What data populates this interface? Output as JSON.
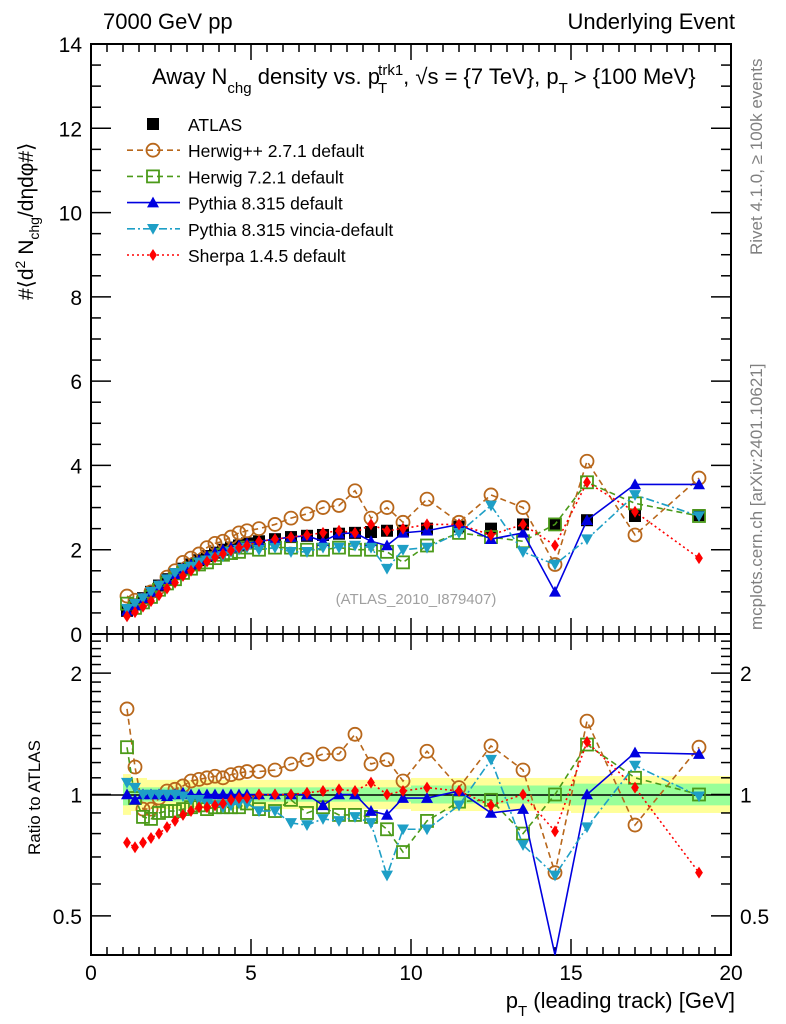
{
  "header": {
    "left": "7000 GeV pp",
    "right": "Underlying Event"
  },
  "side_labels": {
    "rivet": "Rivet 4.1.0, ≥ 100k events",
    "mcplots": "mcplots.cern.ch [arXiv:2401.10621]"
  },
  "watermark": "(ATLAS_2010_I879407)",
  "chart_data": [
    {
      "type": "line",
      "panel": "main",
      "title": "Away N_chg density vs. p_T^trk1, √s = {7 TeV}, p_T > {100 MeV}",
      "title_parts": {
        "a": "Away N",
        "a_sub": "chg",
        "b": " density vs. p",
        "b_sub": "T",
        "b_sup": "trk1",
        "c": ", √s = {7 TeV}, p",
        "c_sub": "T",
        "d": " > {100 MeV}"
      },
      "ylabel": "#⟨d² N_chg/dηdφ#⟩",
      "ylabel_parts": {
        "a": "#⟨d",
        "sup": "2",
        "b": " N",
        "sub": "chg",
        "c": "/dηdφ#⟩"
      },
      "xlabel": "p_T (leading track) [GeV]",
      "xlim": [
        0,
        20
      ],
      "ylim": [
        0,
        14
      ],
      "yticks": [
        0,
        2,
        4,
        6,
        8,
        10,
        12,
        14
      ],
      "xticks": [
        0,
        5,
        10,
        15,
        20
      ],
      "legend_position": "top-left",
      "x": [
        1.125,
        1.375,
        1.625,
        1.875,
        2.125,
        2.375,
        2.625,
        2.875,
        3.125,
        3.375,
        3.625,
        3.875,
        4.125,
        4.375,
        4.625,
        4.875,
        5.25,
        5.75,
        6.25,
        6.75,
        7.25,
        7.75,
        8.25,
        8.75,
        9.25,
        9.75,
        10.5,
        11.5,
        12.5,
        13.5,
        14.5,
        15.5,
        17,
        19
      ],
      "series": [
        {
          "name": "ATLAS",
          "color": "#000000",
          "marker": "square-filled",
          "line": "none",
          "values": [
            0.55,
            0.7,
            0.85,
            1.0,
            1.15,
            1.3,
            1.42,
            1.55,
            1.65,
            1.75,
            1.85,
            1.93,
            2.0,
            2.05,
            2.1,
            2.15,
            2.2,
            2.25,
            2.3,
            2.33,
            2.35,
            2.38,
            2.4,
            2.42,
            2.45,
            2.45,
            2.5,
            2.55,
            2.5,
            2.6,
            2.6,
            2.7,
            2.8,
            2.82
          ]
        },
        {
          "name": "Herwig++ 2.7.1 default",
          "color": "#b8671b",
          "marker": "circle-open",
          "line": "dashed",
          "values": [
            0.9,
            0.8,
            0.8,
            1.0,
            1.1,
            1.35,
            1.5,
            1.7,
            1.8,
            1.9,
            2.05,
            2.15,
            2.2,
            2.3,
            2.4,
            2.45,
            2.5,
            2.6,
            2.75,
            2.85,
            3.0,
            3.05,
            3.4,
            2.75,
            3.0,
            2.65,
            3.2,
            2.65,
            3.3,
            3.0,
            1.65,
            4.1,
            2.35,
            3.7
          ]
        },
        {
          "name": "Herwig 7.2.1 default",
          "color": "#4b9a19",
          "marker": "square-open",
          "line": "dashed",
          "values": [
            0.72,
            0.62,
            0.75,
            0.88,
            1.05,
            1.2,
            1.3,
            1.45,
            1.55,
            1.65,
            1.7,
            1.8,
            1.88,
            1.92,
            1.95,
            2.05,
            2.0,
            2.05,
            2.05,
            2.0,
            2.0,
            2.05,
            2.0,
            2.0,
            1.95,
            1.7,
            2.1,
            2.4,
            2.3,
            2.2,
            2.6,
            3.6,
            3.1,
            2.8
          ]
        },
        {
          "name": "Pythia 8.315 default",
          "color": "#0000e0",
          "marker": "triangle-up-filled",
          "line": "solid",
          "values": [
            0.55,
            0.68,
            0.85,
            1.0,
            1.15,
            1.3,
            1.42,
            1.55,
            1.65,
            1.75,
            1.85,
            1.93,
            2.0,
            2.05,
            2.1,
            2.15,
            2.2,
            2.25,
            2.3,
            2.33,
            2.2,
            2.38,
            2.4,
            2.2,
            2.1,
            2.4,
            2.45,
            2.6,
            2.25,
            2.4,
            1.0,
            2.7,
            3.55,
            3.55
          ]
        },
        {
          "name": "Pythia 8.315 vincia-default",
          "color": "#1e9fc6",
          "marker": "triangle-down-filled",
          "line": "dashdot",
          "values": [
            0.6,
            0.72,
            0.85,
            1.0,
            1.15,
            1.3,
            1.45,
            1.55,
            1.6,
            1.7,
            1.75,
            1.82,
            1.85,
            1.95,
            2.0,
            2.05,
            2.0,
            2.05,
            1.95,
            1.95,
            2.05,
            2.05,
            2.1,
            2.05,
            1.55,
            2.0,
            2.05,
            2.4,
            3.05,
            1.95,
            1.65,
            2.25,
            3.3,
            2.8
          ]
        },
        {
          "name": "Sherpa 1.4.5 default",
          "color": "#ff0000",
          "marker": "diamond-filled",
          "line": "dotted",
          "values": [
            0.42,
            0.52,
            0.65,
            0.78,
            0.92,
            1.08,
            1.22,
            1.38,
            1.5,
            1.62,
            1.72,
            1.82,
            1.9,
            1.98,
            2.05,
            2.1,
            2.2,
            2.25,
            2.3,
            2.35,
            2.4,
            2.45,
            2.4,
            2.6,
            2.45,
            2.5,
            2.6,
            2.6,
            2.35,
            2.6,
            2.1,
            3.6,
            2.9,
            1.8
          ]
        }
      ]
    },
    {
      "type": "line",
      "panel": "ratio",
      "ylabel": "Ratio to ATLAS",
      "xlabel": "p_T (leading track) [GeV]",
      "xlim": [
        0,
        20
      ],
      "ylim": [
        0.4,
        2.5
      ],
      "yscale": "log",
      "ytick_labels": [
        "0.5",
        "1",
        "2"
      ],
      "yticks": [
        0.5,
        1,
        2
      ],
      "xticks": [
        0,
        5,
        10,
        15,
        20
      ],
      "band_inner": [
        0.94,
        0.95,
        0.96,
        0.96,
        0.96,
        0.96,
        0.96,
        0.96,
        0.96,
        0.96,
        0.96,
        0.96,
        0.96,
        0.96,
        0.96,
        0.96,
        0.96,
        0.96,
        0.96,
        0.96,
        0.96,
        0.96,
        0.96,
        0.96,
        0.96,
        0.96,
        0.95,
        0.95,
        0.95,
        0.95,
        0.95,
        0.94,
        0.94,
        0.94
      ],
      "band_outer": [
        0.89,
        0.91,
        0.91,
        0.92,
        0.92,
        0.92,
        0.92,
        0.92,
        0.92,
        0.92,
        0.92,
        0.92,
        0.92,
        0.92,
        0.92,
        0.92,
        0.92,
        0.92,
        0.92,
        0.92,
        0.92,
        0.92,
        0.92,
        0.92,
        0.92,
        0.92,
        0.91,
        0.91,
        0.91,
        0.91,
        0.91,
        0.9,
        0.9,
        0.9
      ],
      "series": [
        {
          "name": "Herwig++ 2.7.1 default",
          "values": [
            1.63,
            1.17,
            0.92,
            0.92,
            0.98,
            1.02,
            1.03,
            1.05,
            1.08,
            1.09,
            1.1,
            1.11,
            1.1,
            1.12,
            1.13,
            1.14,
            1.14,
            1.15,
            1.19,
            1.22,
            1.26,
            1.26,
            1.41,
            1.19,
            1.22,
            1.08,
            1.28,
            1.04,
            1.32,
            1.15,
            0.64,
            1.52,
            0.84,
            1.31
          ]
        },
        {
          "name": "Herwig 7.2.1 default",
          "values": [
            1.31,
            0.98,
            0.88,
            0.87,
            0.9,
            0.91,
            0.91,
            0.92,
            0.93,
            0.94,
            0.92,
            0.93,
            0.93,
            0.93,
            0.93,
            0.95,
            0.92,
            0.91,
            0.97,
            0.9,
            0.93,
            0.89,
            0.89,
            0.88,
            0.82,
            0.72,
            0.86,
            0.96,
            0.97,
            0.8,
            1.0,
            1.33,
            1.1,
            1.0
          ]
        },
        {
          "name": "Pythia 8.315 default",
          "values": [
            1.0,
            0.97,
            1.0,
            1.0,
            1.0,
            0.99,
            1.0,
            1.01,
            1.0,
            1.0,
            1.0,
            1.0,
            1.0,
            1.0,
            1.0,
            1.0,
            1.0,
            1.0,
            1.0,
            1.0,
            0.94,
            1.0,
            1.0,
            0.91,
            0.89,
            0.98,
            0.98,
            1.02,
            0.9,
            0.92,
            0.38,
            1.0,
            1.27,
            1.26
          ]
        },
        {
          "name": "Pythia 8.315 vincia-default",
          "values": [
            1.07,
            1.04,
            1.0,
            1.0,
            1.0,
            1.0,
            1.0,
            0.99,
            0.97,
            0.97,
            0.95,
            0.94,
            0.93,
            0.94,
            0.95,
            0.95,
            0.91,
            0.91,
            0.85,
            0.84,
            0.87,
            0.86,
            0.88,
            0.85,
            0.63,
            0.82,
            0.82,
            0.94,
            1.22,
            0.75,
            0.63,
            0.83,
            1.18,
            0.99
          ]
        },
        {
          "name": "Sherpa 1.4.5 default",
          "values": [
            0.76,
            0.74,
            0.76,
            0.78,
            0.8,
            0.83,
            0.86,
            0.89,
            0.91,
            0.93,
            0.93,
            0.94,
            0.95,
            0.97,
            0.98,
            0.98,
            1.0,
            1.0,
            1.0,
            1.01,
            1.02,
            1.03,
            1.02,
            1.07,
            1.0,
            1.02,
            1.04,
            1.02,
            0.94,
            1.0,
            0.81,
            1.35,
            1.04,
            0.64
          ]
        }
      ]
    }
  ]
}
